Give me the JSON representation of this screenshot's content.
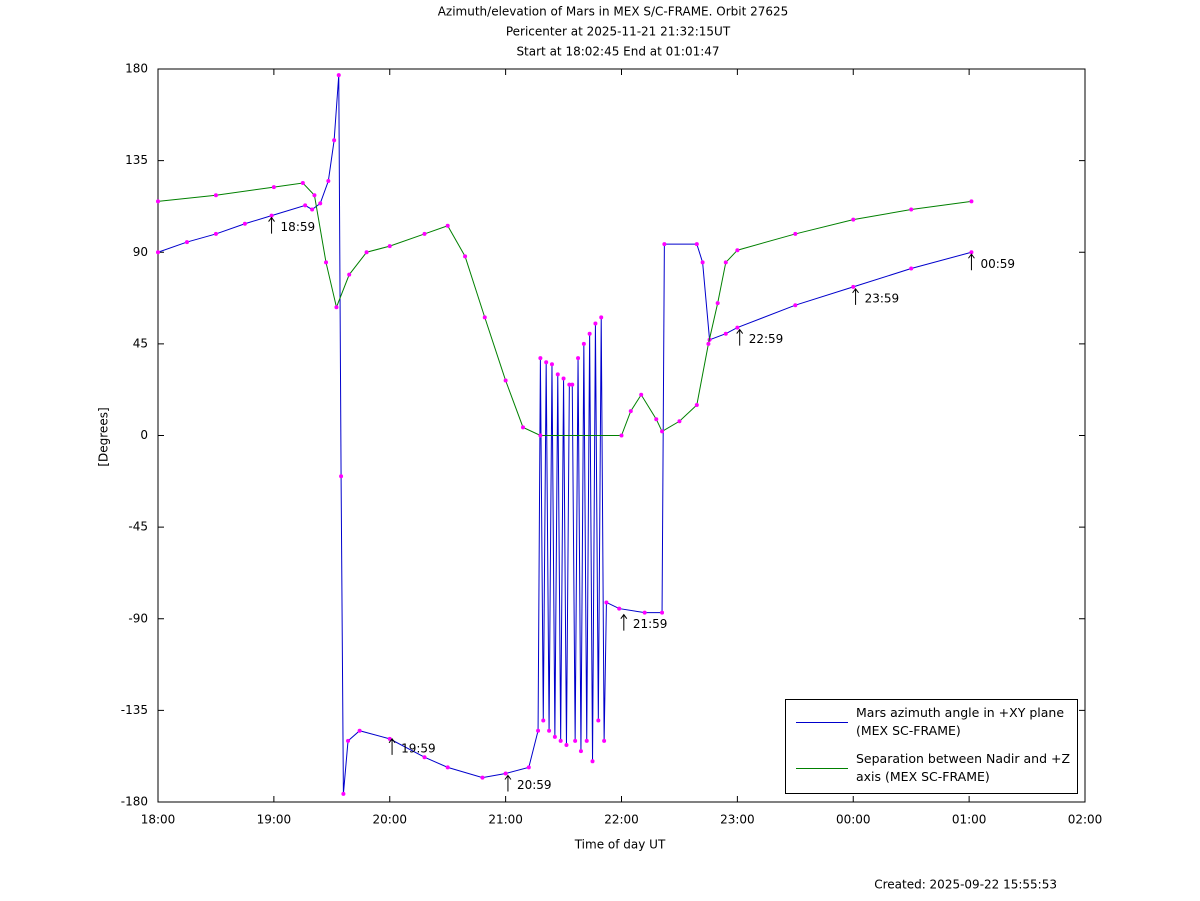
{
  "chart_data": {
    "type": "line",
    "title": "Azimuth/elevation of Mars in MEX S/C-FRAME.  Orbit 27625",
    "subtitle": [
      "Pericenter at 2025-11-21 21:32:15UT",
      "Start at 18:02:45 End at 01:01:47"
    ],
    "x_label": "Time of day UT",
    "y_label": "[Degrees]",
    "footer": "Created: 2025-09-22 15:55:53",
    "xlim": [
      18,
      26
    ],
    "xticks": [
      {
        "value": 18,
        "label": "18:00"
      },
      {
        "value": 19,
        "label": "19:00"
      },
      {
        "value": 20,
        "label": "20:00"
      },
      {
        "value": 21,
        "label": "21:00"
      },
      {
        "value": 22,
        "label": "22:00"
      },
      {
        "value": 23,
        "label": "23:00"
      },
      {
        "value": 24,
        "label": "00:00"
      },
      {
        "value": 25,
        "label": "01:00"
      },
      {
        "value": 26,
        "label": "02:00"
      }
    ],
    "ylim": [
      -180,
      180
    ],
    "yticks": [
      -180,
      -135,
      -90,
      -45,
      0,
      45,
      90,
      135,
      180
    ],
    "marker_color": "#ff00ff",
    "series": [
      {
        "name": "Mars azimuth angle in +XY plane (MEX SC-FRAME)",
        "color": "#0000cc",
        "x": [
          18,
          18.25,
          18.5,
          18.75,
          18.98,
          19.27,
          19.33,
          19.4,
          19.47,
          19.52,
          19.56,
          19.58,
          19.6,
          19.64,
          19.74,
          20,
          20.3,
          20.5,
          20.8,
          21,
          21.2,
          21.28,
          21.3,
          21.325,
          21.35,
          21.375,
          21.4,
          21.425,
          21.45,
          21.475,
          21.5,
          21.525,
          21.55,
          21.575,
          21.6,
          21.625,
          21.65,
          21.675,
          21.7,
          21.725,
          21.75,
          21.775,
          21.8,
          21.825,
          21.85,
          21.87,
          21.98,
          22.2,
          22.35,
          22.37,
          22.65,
          22.7,
          22.76,
          22.9,
          23,
          23.5,
          24,
          24.5,
          25.02
        ],
        "values": [
          90,
          95,
          99,
          104,
          108,
          113,
          111,
          114,
          125,
          145,
          177,
          -20,
          -176,
          -150,
          -145,
          -149,
          -158,
          -163,
          -168,
          -166,
          -163,
          -145,
          38,
          -140,
          36,
          -145,
          35,
          -148,
          30,
          -150,
          28,
          -152,
          25,
          25,
          -150,
          38,
          -155,
          45,
          -150,
          50,
          -160,
          55,
          -140,
          58,
          -150,
          -82,
          -85,
          -87,
          -87,
          94,
          94,
          85,
          47,
          50,
          53,
          64,
          73,
          82,
          90
        ]
      },
      {
        "name": "Separation between Nadir and +Z axis (MEX SC-FRAME)",
        "color": "#008000",
        "x": [
          18,
          18.5,
          19,
          19.25,
          19.35,
          19.45,
          19.54,
          19.65,
          19.8,
          20,
          20.3,
          20.5,
          20.65,
          20.82,
          21,
          21.15,
          21.3,
          22,
          22.08,
          22.17,
          22.3,
          22.35,
          22.5,
          22.65,
          22.75,
          22.83,
          22.9,
          23,
          23.5,
          24,
          24.5,
          25.02
        ],
        "values": [
          115,
          118,
          122,
          124,
          118,
          85,
          63,
          79,
          90,
          93,
          99,
          103,
          88,
          58,
          27,
          4,
          0,
          0,
          12,
          20,
          8,
          2,
          7,
          15,
          45,
          65,
          85,
          91,
          99,
          106,
          111,
          115
        ]
      }
    ],
    "annotations": [
      {
        "text": "18:59",
        "x": 18.98,
        "y": 108
      },
      {
        "text": "19:59",
        "x": 20.02,
        "y": -148
      },
      {
        "text": "20:59",
        "x": 21.02,
        "y": -166
      },
      {
        "text": "21:59",
        "x": 22.02,
        "y": -87
      },
      {
        "text": "22:59",
        "x": 23.02,
        "y": 53
      },
      {
        "text": "23:59",
        "x": 24.02,
        "y": 73
      },
      {
        "text": "00:59",
        "x": 25.02,
        "y": 90
      }
    ]
  }
}
